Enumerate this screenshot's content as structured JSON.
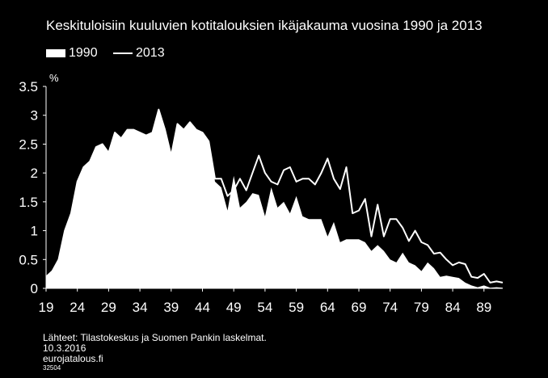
{
  "chart_data": {
    "type": "area",
    "title": "Keskituloisiin kuuluvien kotitalouksien ikäjakauma vuosina 1990 ja 2013",
    "ylabel": "%",
    "xlabel": "",
    "ylim": [
      0,
      3.5
    ],
    "yticks": [
      "0",
      "0.5",
      "1",
      "1.5",
      "2",
      "2.5",
      "3",
      "3.5"
    ],
    "xticks": [
      "19",
      "24",
      "29",
      "34",
      "39",
      "44",
      "49",
      "54",
      "59",
      "64",
      "69",
      "74",
      "79",
      "84",
      "89"
    ],
    "x": [
      19,
      20,
      21,
      22,
      23,
      24,
      25,
      26,
      27,
      28,
      29,
      30,
      31,
      32,
      33,
      34,
      35,
      36,
      37,
      38,
      39,
      40,
      41,
      42,
      43,
      44,
      45,
      46,
      47,
      48,
      49,
      50,
      51,
      52,
      53,
      54,
      55,
      56,
      57,
      58,
      59,
      60,
      61,
      62,
      63,
      64,
      65,
      66,
      67,
      68,
      69,
      70,
      71,
      72,
      73,
      74,
      75,
      76,
      77,
      78,
      79,
      80,
      81,
      82,
      83,
      84,
      85,
      86,
      87,
      88,
      89,
      90,
      91,
      92
    ],
    "grid": false,
    "legend_position": "top-left",
    "colors": {
      "background": "#000000",
      "series": "#ffffff"
    },
    "series": [
      {
        "name": "1990",
        "style": "filled-area",
        "values": [
          0.2,
          0.3,
          0.5,
          1.0,
          1.3,
          1.85,
          2.1,
          2.2,
          2.45,
          2.5,
          2.35,
          2.7,
          2.6,
          2.75,
          2.75,
          2.7,
          2.65,
          2.7,
          3.1,
          2.75,
          2.3,
          2.85,
          2.75,
          2.88,
          2.75,
          2.7,
          2.55,
          1.85,
          1.75,
          1.35,
          1.95,
          1.4,
          1.5,
          1.65,
          1.62,
          1.25,
          1.75,
          1.4,
          1.5,
          1.3,
          1.6,
          1.25,
          1.2,
          1.2,
          1.2,
          0.9,
          1.15,
          0.8,
          0.85,
          0.85,
          0.85,
          0.8,
          0.65,
          0.75,
          0.65,
          0.5,
          0.45,
          0.62,
          0.45,
          0.4,
          0.3,
          0.45,
          0.35,
          0.2,
          0.22,
          0.2,
          0.18,
          0.1,
          0.05,
          0.02,
          0.05,
          0.01,
          0.02,
          0.01
        ]
      },
      {
        "name": "2013",
        "style": "line",
        "values": [
          0.2,
          0.3,
          0.5,
          1.0,
          1.3,
          1.85,
          2.1,
          2.2,
          2.45,
          2.5,
          2.35,
          2.7,
          2.6,
          2.75,
          2.75,
          2.7,
          2.65,
          2.7,
          3.1,
          2.75,
          2.3,
          2.85,
          2.75,
          2.88,
          2.75,
          2.7,
          2.55,
          1.9,
          1.9,
          1.6,
          1.7,
          1.9,
          1.7,
          2.0,
          2.3,
          2.0,
          1.85,
          1.8,
          2.05,
          2.1,
          1.85,
          1.9,
          1.9,
          1.8,
          2.0,
          2.25,
          1.9,
          1.72,
          2.1,
          1.3,
          1.35,
          1.55,
          0.9,
          1.45,
          0.9,
          1.2,
          1.2,
          1.05,
          0.82,
          1.0,
          0.8,
          0.75,
          0.6,
          0.62,
          0.5,
          0.4,
          0.45,
          0.42,
          0.2,
          0.18,
          0.25,
          0.1,
          0.12,
          0.1
        ]
      }
    ]
  },
  "footer": {
    "source": "Lähteet: Tilastokeskus ja Suomen Pankin laskelmat.",
    "date": "10.3.2016",
    "site": "eurojatalous.fi",
    "code": "32504"
  }
}
